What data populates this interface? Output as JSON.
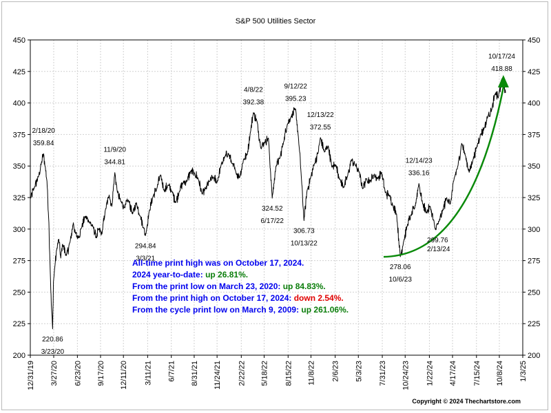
{
  "chart_data": {
    "type": "line",
    "title": "S&P 500 Utilities Sector",
    "xlabel": "",
    "ylabel": "",
    "ylim": [
      200,
      450
    ],
    "y_ticks": [
      200,
      225,
      250,
      275,
      300,
      325,
      350,
      375,
      400,
      425,
      450
    ],
    "x_range": [
      "2019-12-31",
      "2025-01-03"
    ],
    "x_ticks": [
      {
        "date": "2019-12-31",
        "label": "12/31/19"
      },
      {
        "date": "2020-03-27",
        "label": "3/27/20"
      },
      {
        "date": "2020-06-23",
        "label": "6/23/20"
      },
      {
        "date": "2020-09-17",
        "label": "9/17/20"
      },
      {
        "date": "2020-12-11",
        "label": "12/11/20"
      },
      {
        "date": "2021-03-11",
        "label": "3/11/21"
      },
      {
        "date": "2021-06-07",
        "label": "6/7/21"
      },
      {
        "date": "2021-08-31",
        "label": "8/31/21"
      },
      {
        "date": "2021-11-24",
        "label": "11/24/21"
      },
      {
        "date": "2022-02-22",
        "label": "2/22/22"
      },
      {
        "date": "2022-05-18",
        "label": "5/18/22"
      },
      {
        "date": "2022-08-15",
        "label": "8/15/22"
      },
      {
        "date": "2022-11-08",
        "label": "11/8/22"
      },
      {
        "date": "2023-02-06",
        "label": "2/6/23"
      },
      {
        "date": "2023-05-03",
        "label": "5/3/23"
      },
      {
        "date": "2023-07-31",
        "label": "7/31/23"
      },
      {
        "date": "2023-10-24",
        "label": "10/24/23"
      },
      {
        "date": "2024-01-22",
        "label": "1/22/24"
      },
      {
        "date": "2024-04-17",
        "label": "4/17/24"
      },
      {
        "date": "2024-07-15",
        "label": "7/15/24"
      },
      {
        "date": "2024-10-08",
        "label": "10/8/24"
      },
      {
        "date": "2025-01-03",
        "label": "1/3/25"
      }
    ],
    "grid": true,
    "legend": "none",
    "series": [
      {
        "color": "#000000",
        "points": [
          [
            "2019-12-31",
            324
          ],
          [
            "2020-01-15",
            333
          ],
          [
            "2020-01-31",
            342
          ],
          [
            "2020-02-10",
            352
          ],
          [
            "2020-02-18",
            359.84
          ],
          [
            "2020-02-24",
            350
          ],
          [
            "2020-03-02",
            338
          ],
          [
            "2020-03-09",
            305
          ],
          [
            "2020-03-13",
            275
          ],
          [
            "2020-03-18",
            240
          ],
          [
            "2020-03-23",
            220.86
          ],
          [
            "2020-03-26",
            258
          ],
          [
            "2020-03-31",
            270
          ],
          [
            "2020-04-08",
            285
          ],
          [
            "2020-04-15",
            292
          ],
          [
            "2020-04-22",
            277
          ],
          [
            "2020-04-29",
            288
          ],
          [
            "2020-05-13",
            279
          ],
          [
            "2020-05-27",
            290
          ],
          [
            "2020-06-08",
            305
          ],
          [
            "2020-06-15",
            297
          ],
          [
            "2020-06-26",
            293
          ],
          [
            "2020-07-08",
            301
          ],
          [
            "2020-07-22",
            310
          ],
          [
            "2020-08-05",
            306
          ],
          [
            "2020-08-20",
            302
          ],
          [
            "2020-09-02",
            293
          ],
          [
            "2020-09-10",
            300
          ],
          [
            "2020-09-22",
            296
          ],
          [
            "2020-10-05",
            315
          ],
          [
            "2020-10-19",
            327
          ],
          [
            "2020-10-29",
            318
          ],
          [
            "2020-11-09",
            344.81
          ],
          [
            "2020-11-18",
            330
          ],
          [
            "2020-12-01",
            322
          ],
          [
            "2020-12-15",
            317
          ],
          [
            "2020-12-30",
            323
          ],
          [
            "2021-01-14",
            312
          ],
          [
            "2021-01-28",
            321
          ],
          [
            "2021-02-12",
            310
          ],
          [
            "2021-02-24",
            301
          ],
          [
            "2021-03-03",
            294.84
          ],
          [
            "2021-03-17",
            314
          ],
          [
            "2021-03-31",
            326
          ],
          [
            "2021-04-14",
            332
          ],
          [
            "2021-04-28",
            343
          ],
          [
            "2021-05-12",
            330
          ],
          [
            "2021-05-26",
            335
          ],
          [
            "2021-06-09",
            330
          ],
          [
            "2021-06-23",
            321
          ],
          [
            "2021-07-07",
            330
          ],
          [
            "2021-07-21",
            337
          ],
          [
            "2021-08-04",
            338
          ],
          [
            "2021-08-18",
            346
          ],
          [
            "2021-09-01",
            344
          ],
          [
            "2021-09-15",
            340
          ],
          [
            "2021-09-29",
            328
          ],
          [
            "2021-10-13",
            332
          ],
          [
            "2021-10-27",
            338
          ],
          [
            "2021-11-10",
            341
          ],
          [
            "2021-11-24",
            337
          ],
          [
            "2021-12-08",
            350
          ],
          [
            "2021-12-22",
            357
          ],
          [
            "2022-01-05",
            360
          ],
          [
            "2022-01-19",
            352
          ],
          [
            "2022-02-02",
            345
          ],
          [
            "2022-02-16",
            341
          ],
          [
            "2022-03-02",
            355
          ],
          [
            "2022-03-16",
            359
          ],
          [
            "2022-03-28",
            377
          ],
          [
            "2022-04-08",
            392.38
          ],
          [
            "2022-04-22",
            385
          ],
          [
            "2022-05-06",
            364
          ],
          [
            "2022-05-20",
            369
          ],
          [
            "2022-06-03",
            372
          ],
          [
            "2022-06-17",
            324.52
          ],
          [
            "2022-07-01",
            350
          ],
          [
            "2022-07-15",
            356
          ],
          [
            "2022-07-29",
            369
          ],
          [
            "2022-08-12",
            383
          ],
          [
            "2022-08-26",
            389
          ],
          [
            "2022-09-12",
            395.23
          ],
          [
            "2022-09-23",
            371
          ],
          [
            "2022-10-03",
            342
          ],
          [
            "2022-10-13",
            306.73
          ],
          [
            "2022-10-24",
            330
          ],
          [
            "2022-11-07",
            341
          ],
          [
            "2022-11-21",
            352
          ],
          [
            "2022-12-05",
            361
          ],
          [
            "2022-12-13",
            372.55
          ],
          [
            "2022-12-28",
            361
          ],
          [
            "2023-01-11",
            366
          ],
          [
            "2023-01-25",
            349
          ],
          [
            "2023-02-08",
            351
          ],
          [
            "2023-02-24",
            339
          ],
          [
            "2023-03-10",
            333
          ],
          [
            "2023-03-24",
            342
          ],
          [
            "2023-04-07",
            355
          ],
          [
            "2023-04-21",
            351
          ],
          [
            "2023-05-05",
            346
          ],
          [
            "2023-05-19",
            332
          ],
          [
            "2023-06-02",
            340
          ],
          [
            "2023-06-16",
            338
          ],
          [
            "2023-06-30",
            343
          ],
          [
            "2023-07-14",
            340
          ],
          [
            "2023-07-28",
            345
          ],
          [
            "2023-08-11",
            329
          ],
          [
            "2023-08-25",
            327
          ],
          [
            "2023-09-08",
            319
          ],
          [
            "2023-09-22",
            312
          ],
          [
            "2023-10-06",
            278.06
          ],
          [
            "2023-10-18",
            290
          ],
          [
            "2023-11-01",
            303
          ],
          [
            "2023-11-15",
            311
          ],
          [
            "2023-11-29",
            317
          ],
          [
            "2023-12-14",
            336.16
          ],
          [
            "2023-12-28",
            320
          ],
          [
            "2024-01-11",
            313
          ],
          [
            "2024-01-25",
            318
          ],
          [
            "2024-02-13",
            299.76
          ],
          [
            "2024-02-27",
            306
          ],
          [
            "2024-03-12",
            315
          ],
          [
            "2024-03-26",
            325
          ],
          [
            "2024-04-09",
            320
          ],
          [
            "2024-04-23",
            340
          ],
          [
            "2024-05-07",
            350
          ],
          [
            "2024-05-21",
            368
          ],
          [
            "2024-06-04",
            358
          ],
          [
            "2024-06-18",
            345
          ],
          [
            "2024-07-02",
            355
          ],
          [
            "2024-07-16",
            365
          ],
          [
            "2024-07-30",
            375
          ],
          [
            "2024-08-13",
            380
          ],
          [
            "2024-08-27",
            390
          ],
          [
            "2024-09-10",
            395
          ],
          [
            "2024-09-24",
            408
          ],
          [
            "2024-10-04",
            404
          ],
          [
            "2024-10-17",
            418.88
          ],
          [
            "2024-10-25",
            414
          ],
          [
            "2024-10-31",
            408
          ]
        ]
      }
    ],
    "annotations": [
      {
        "date": "2020-02-18",
        "value": 359.84,
        "label_date": "2/18/20",
        "label_value": "359.84",
        "position": "above"
      },
      {
        "date": "2020-03-23",
        "value": 220.86,
        "label_date": "3/23/20",
        "label_value": "220.86",
        "position": "below"
      },
      {
        "date": "2020-11-09",
        "value": 344.81,
        "label_date": "11/9/20",
        "label_value": "344.81",
        "position": "above"
      },
      {
        "date": "2021-03-03",
        "value": 294.84,
        "label_date": "3/3/21",
        "label_value": "294.84",
        "position": "below"
      },
      {
        "date": "2022-04-08",
        "value": 392.38,
        "label_date": "4/8/22",
        "label_value": "392.38",
        "position": "above"
      },
      {
        "date": "2022-06-17",
        "value": 324.52,
        "label_date": "6/17/22",
        "label_value": "324.52",
        "position": "below"
      },
      {
        "date": "2022-09-12",
        "value": 395.23,
        "label_date": "9/12/22",
        "label_value": "395.23",
        "position": "above"
      },
      {
        "date": "2022-10-13",
        "value": 306.73,
        "label_date": "10/13/22",
        "label_value": "306.73",
        "position": "below"
      },
      {
        "date": "2022-12-13",
        "value": 372.55,
        "label_date": "12/13/22",
        "label_value": "372.55",
        "position": "above"
      },
      {
        "date": "2023-10-06",
        "value": 278.06,
        "label_date": "10/6/23",
        "label_value": "278.06",
        "position": "below"
      },
      {
        "date": "2023-12-14",
        "value": 336.16,
        "label_date": "12/14/23",
        "label_value": "336.16",
        "position": "above"
      },
      {
        "date": "2024-02-13",
        "value": 299.76,
        "label_date": "2/13/24",
        "label_value": "299.76",
        "position": "below-right"
      },
      {
        "date": "2024-10-17",
        "value": 418.88,
        "label_date": "10/17/24",
        "label_value": "418.88",
        "position": "above"
      }
    ],
    "trend_arrow": {
      "color": "#0a8a0a",
      "from": [
        "2023-08-05",
        278
      ],
      "to": [
        "2024-10-23",
        420
      ]
    },
    "notes": [
      {
        "label": "All-time print high was on October 17, 2024.",
        "value": "",
        "tone": "none"
      },
      {
        "label": "2024 year-to-date:",
        "value": "up 26.81%.",
        "tone": "up"
      },
      {
        "label": "From the print low on March 23, 2020:",
        "value": "up 84.83%.",
        "tone": "up"
      },
      {
        "label": "From the print high on October 17, 2024:",
        "value": "down 2.54%.",
        "tone": "down"
      },
      {
        "label": "From the cycle print low on March 9, 2009:",
        "value": "up 261.06%.",
        "tone": "up"
      }
    ],
    "copyright": "Copyright © 2024 Thechartstore.com"
  }
}
